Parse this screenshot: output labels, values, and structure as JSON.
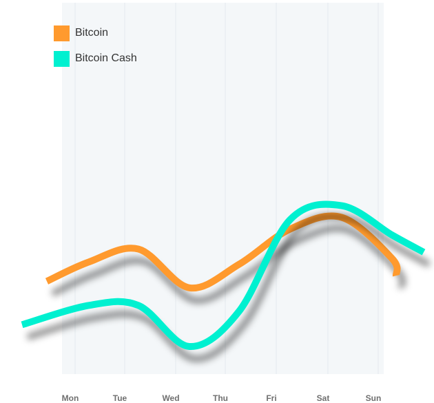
{
  "chart_data": {
    "type": "line",
    "title": "",
    "xlabel": "",
    "ylabel": "",
    "categories": [
      "Mon",
      "Tue",
      "Wed",
      "Thu",
      "Fri",
      "Sat",
      "Sun"
    ],
    "series": [
      {
        "name": "Bitcoin",
        "color": "#ff9a2e",
        "values": [
          48,
          37,
          70,
          50,
          20,
          10,
          45
        ]
      },
      {
        "name": "Bitcoin Cash",
        "color": "#00f0d0",
        "values": [
          85,
          85,
          120,
          90,
          12,
          0,
          25
        ]
      }
    ],
    "ylim": [
      130,
      -5
    ],
    "grid": true,
    "legend": {
      "position": "top-left"
    },
    "background_color": "#f4f7f9",
    "gridline_color": "#e4eaee"
  }
}
